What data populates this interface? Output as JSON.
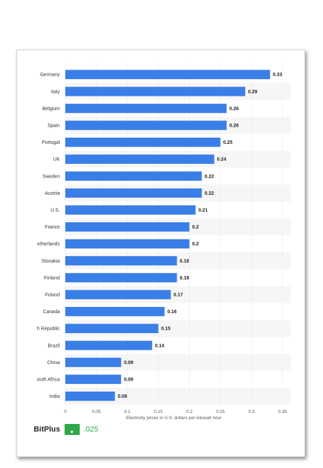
{
  "chart_data": {
    "type": "bar",
    "orientation": "horizontal",
    "categories": [
      "Germany",
      "Italy",
      "Belgium",
      "Spain",
      "Portugal",
      "UK",
      "Sweden",
      "Austria",
      "U.S.",
      "France",
      "etherlands",
      "Slovakia",
      "Finland",
      "Poland",
      "Canada",
      "h Republic",
      "Brazil",
      "China",
      "outh Africa",
      "India"
    ],
    "values": [
      0.33,
      0.29,
      0.26,
      0.26,
      0.25,
      0.24,
      0.22,
      0.22,
      0.21,
      0.2,
      0.2,
      0.18,
      0.18,
      0.17,
      0.16,
      0.15,
      0.14,
      0.09,
      0.09,
      0.08
    ],
    "value_labels": [
      "0.33",
      "0.29",
      "0.26",
      "0.26",
      "0.25",
      "0.24",
      "0.22",
      "0.22",
      "0.21",
      "0.2",
      "0.2",
      "0.18",
      "0.18",
      "0.17",
      "0.16",
      "0.15",
      "0.14",
      "0.09",
      "0.09",
      "0.08"
    ],
    "xlabel": "Electricity prices in U.S. dollars per kilowatt hour",
    "xlim": [
      0,
      0.35
    ],
    "xticks": [
      "0",
      "0.05",
      "0.1",
      "0.15",
      "0.2",
      "0.25",
      "0.3",
      "0.35"
    ],
    "grid": true,
    "bar_color": "#3a7ee8"
  },
  "footer": {
    "brand_name": "BitPlus",
    "brand_value": ".025",
    "brand_color": "#2ea84a"
  }
}
